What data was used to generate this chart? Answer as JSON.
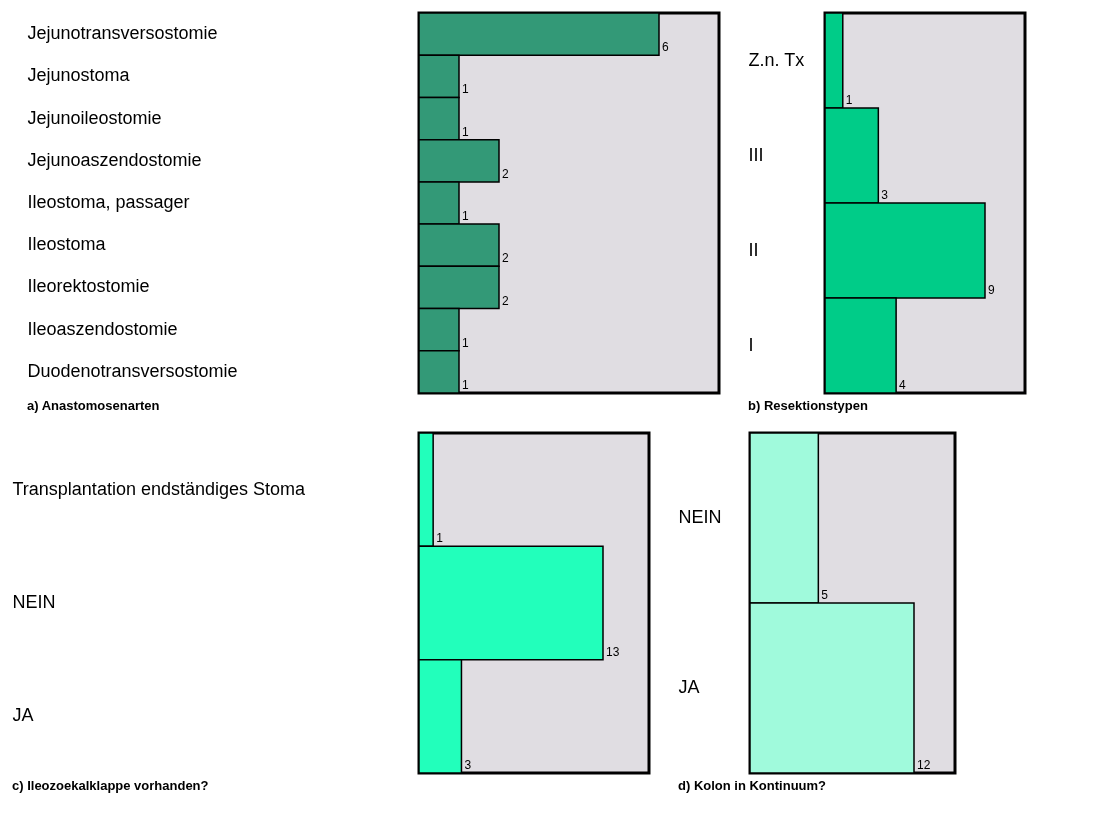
{
  "chart_data": [
    {
      "type": "bar",
      "orientation": "horizontal",
      "title": "a) Anastomosenarten",
      "categories": [
        "Jejunotransversostomie",
        "Jejunostoma",
        "Jejunoileostomie",
        "Jejunoaszendostomie",
        "Ileostoma, passager",
        "Ileostoma",
        "Ileorektostomie",
        "Ileoaszendostomie",
        "Duodenotransversostomie"
      ],
      "values": [
        6,
        1,
        1,
        2,
        1,
        2,
        2,
        1,
        1
      ],
      "color": "#339977",
      "data_labels": true
    },
    {
      "type": "bar",
      "orientation": "horizontal",
      "title": "b) Resektionstypen",
      "categories": [
        "Z.n. Tx",
        "III",
        "II",
        "I"
      ],
      "values": [
        1,
        3,
        9,
        4
      ],
      "color": "#00cc88",
      "data_labels": true
    },
    {
      "type": "bar",
      "orientation": "horizontal",
      "title": "c) Ileozoekalklappe vorhanden?",
      "categories": [
        "Transplantation endständiges Stoma",
        "NEIN",
        "JA"
      ],
      "values": [
        1,
        13,
        3
      ],
      "color": "#22ffbb",
      "data_labels": true
    },
    {
      "type": "bar",
      "orientation": "horizontal",
      "title": "d) Kolon in Kontinuum?",
      "categories": [
        "NEIN",
        "JA"
      ],
      "values": [
        5,
        12
      ],
      "color": "#a0fadc",
      "data_labels": true
    }
  ]
}
